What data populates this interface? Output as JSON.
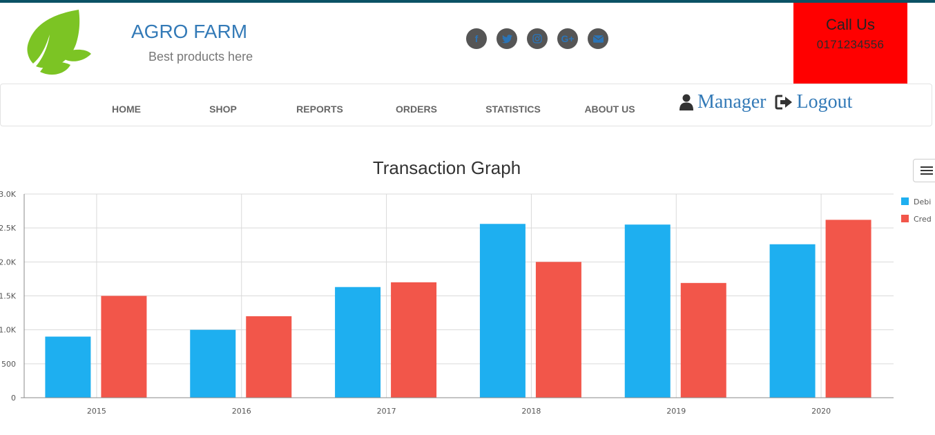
{
  "header": {
    "brand_title": "AGRO FARM",
    "brand_subtitle": "Best products here",
    "social": [
      {
        "name": "facebook-icon",
        "glyph": "f"
      },
      {
        "name": "twitter-icon",
        "glyph": ""
      },
      {
        "name": "instagram-icon",
        "glyph": ""
      },
      {
        "name": "google-plus-icon",
        "glyph": "G+"
      },
      {
        "name": "envelope-icon",
        "glyph": ""
      }
    ],
    "call": {
      "title": "Call Us",
      "phone": "0171234556"
    }
  },
  "nav": {
    "items": [
      "HOME",
      "SHOP",
      "REPORTS",
      "ORDERS",
      "STATISTICS",
      "ABOUT US"
    ],
    "manager_label": "Manager",
    "logout_label": "Logout"
  },
  "colors": {
    "top_strip": "#0b5265",
    "brand": "#337ab7",
    "call_bg": "#ff0000",
    "debit": "#1eaff0",
    "credit": "#f2564a"
  },
  "chart_data": {
    "type": "bar",
    "title": "Transaction Graph",
    "categories": [
      "2015",
      "2016",
      "2017",
      "2018",
      "2019",
      "2020"
    ],
    "series": [
      {
        "name": "Debit",
        "values": [
          900,
          1000,
          1630,
          2560,
          2550,
          2260
        ]
      },
      {
        "name": "Credit",
        "values": [
          1500,
          1200,
          1700,
          2000,
          1690,
          2620
        ]
      }
    ],
    "legend_labels": [
      "Debi",
      "Cred"
    ],
    "ylim": [
      0,
      3000
    ],
    "y_ticks": [
      "0",
      "500",
      "1.0K",
      "1.5K",
      "2.0K",
      "2.5K",
      "3.0K"
    ],
    "grid": true,
    "legend_position": "right"
  }
}
